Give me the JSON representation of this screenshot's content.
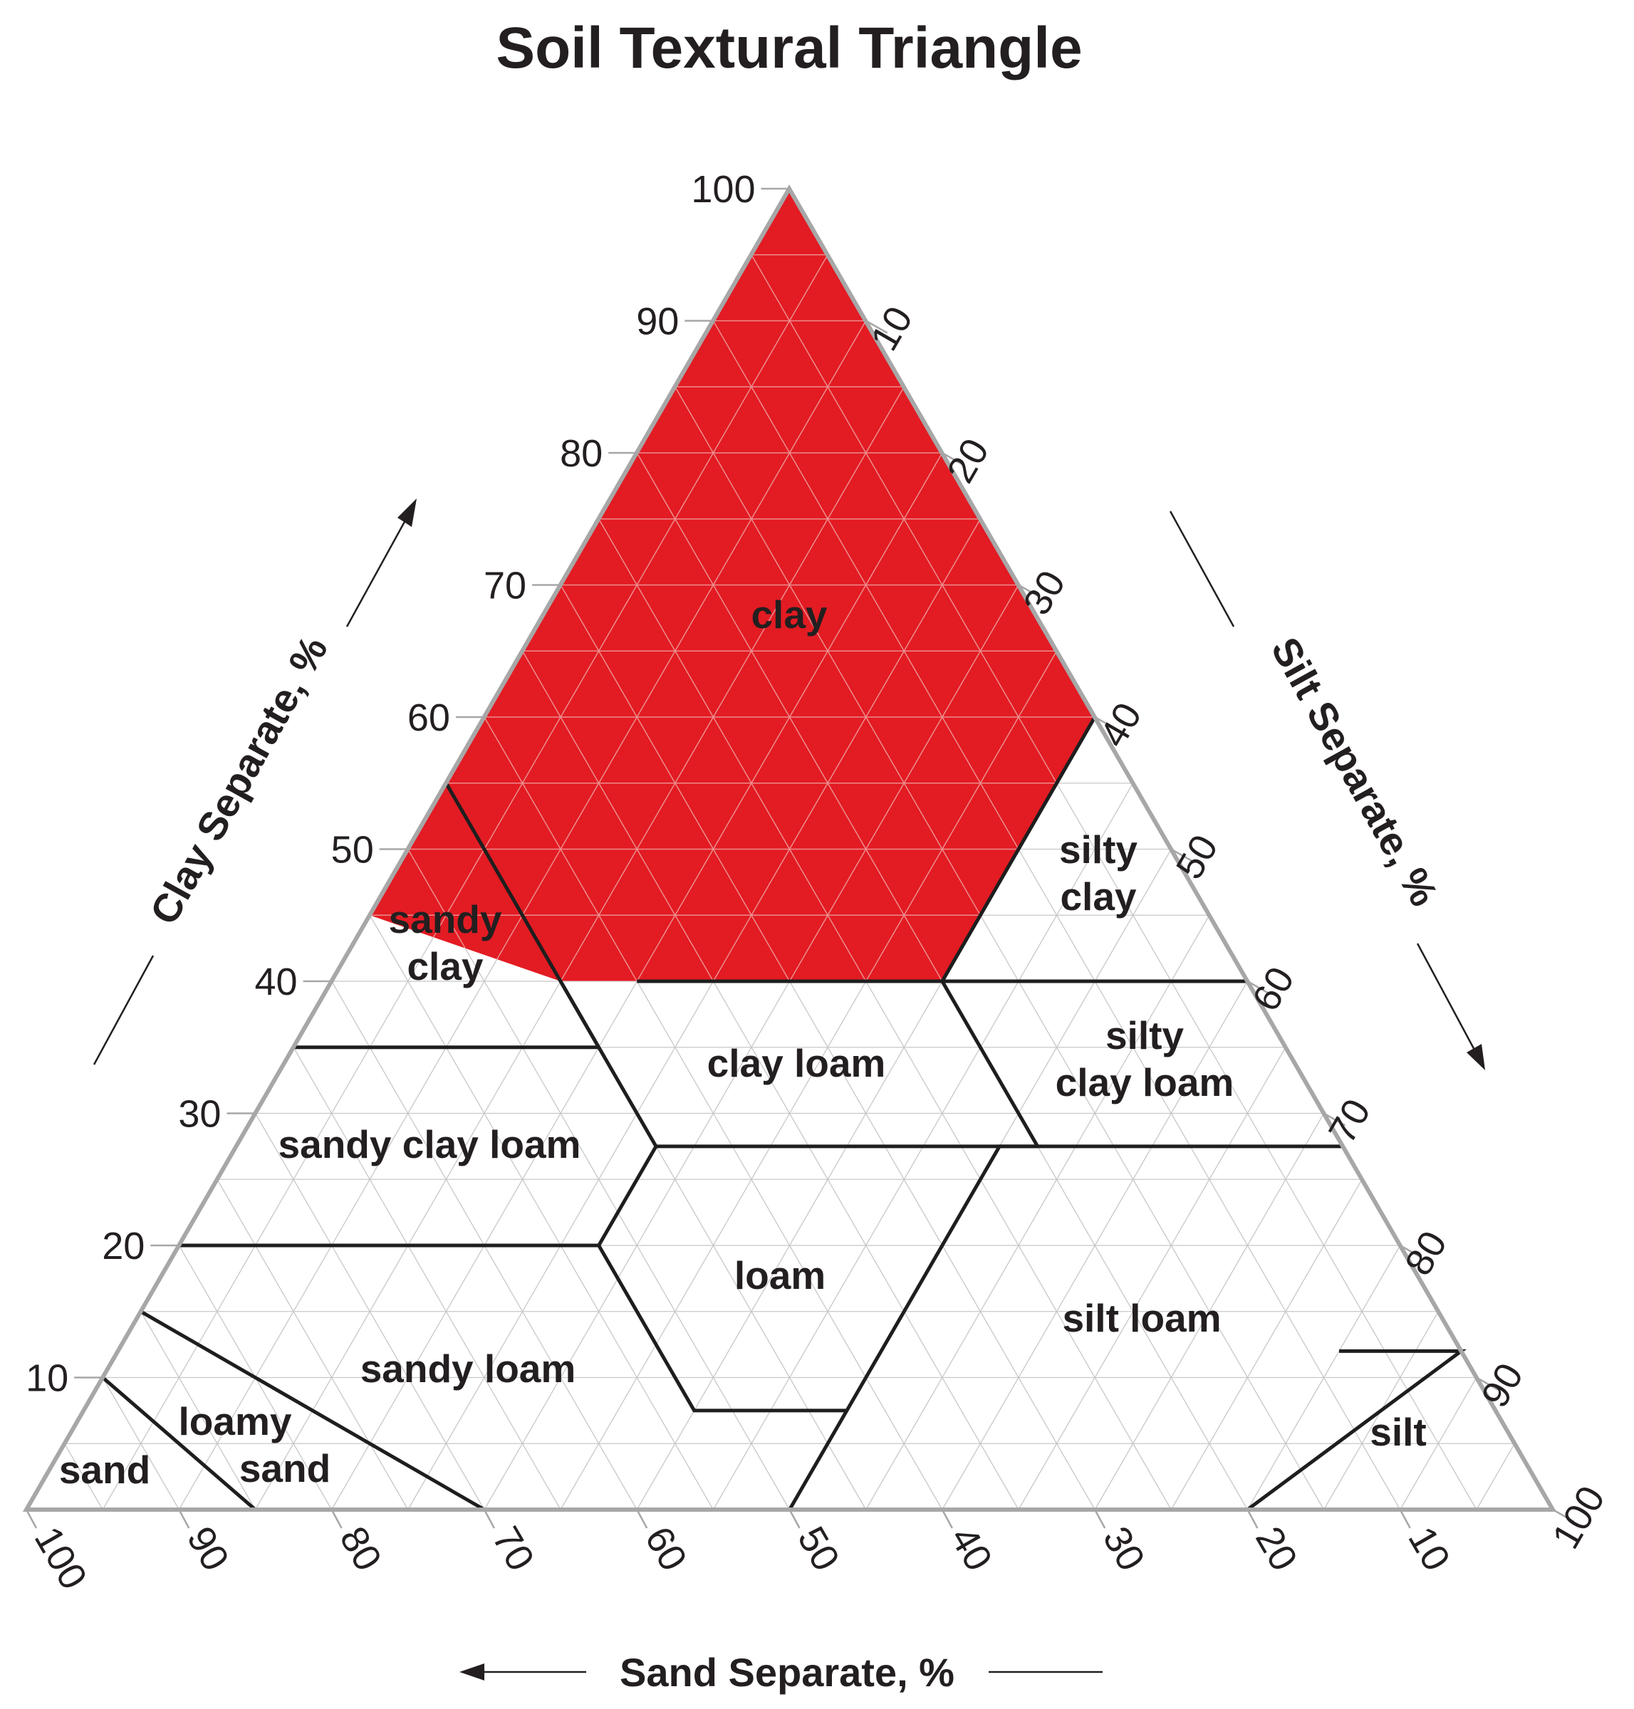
{
  "title": "Soil Textural Triangle",
  "axes": {
    "clay": {
      "label": "Clay Separate, %",
      "ticks": [
        "10",
        "20",
        "30",
        "40",
        "50",
        "60",
        "70",
        "80",
        "90",
        "100"
      ]
    },
    "silt": {
      "label": "Silt Separate, %",
      "ticks": [
        "10",
        "20",
        "30",
        "40",
        "50",
        "60",
        "70",
        "80",
        "90",
        "100"
      ]
    },
    "sand": {
      "label": "Sand Separate, %",
      "ticks": [
        "100",
        "90",
        "80",
        "70",
        "60",
        "50",
        "40",
        "30",
        "20",
        "10"
      ]
    }
  },
  "colors": {
    "highlight": "#e31b23",
    "boundary": "#1e1e1e",
    "outline": "#a7a7a7"
  },
  "highlighted_class": "clay",
  "texture_classes": [
    {
      "id": "clay",
      "lines": [
        "clay"
      ]
    },
    {
      "id": "silty-clay",
      "lines": [
        "silty",
        "clay"
      ]
    },
    {
      "id": "sandy-clay",
      "lines": [
        "sandy",
        "clay"
      ]
    },
    {
      "id": "clay-loam",
      "lines": [
        "clay loam"
      ]
    },
    {
      "id": "silty-clay-loam",
      "lines": [
        "silty",
        "clay loam"
      ]
    },
    {
      "id": "sandy-clay-loam",
      "lines": [
        "sandy clay loam"
      ]
    },
    {
      "id": "loam",
      "lines": [
        "loam"
      ]
    },
    {
      "id": "silt-loam",
      "lines": [
        "silt loam"
      ]
    },
    {
      "id": "sandy-loam",
      "lines": [
        "sandy loam"
      ]
    },
    {
      "id": "loamy-sand",
      "lines": [
        "loamy",
        "sand"
      ]
    },
    {
      "id": "sand",
      "lines": [
        "sand"
      ]
    },
    {
      "id": "silt",
      "lines": [
        "silt"
      ]
    }
  ]
}
